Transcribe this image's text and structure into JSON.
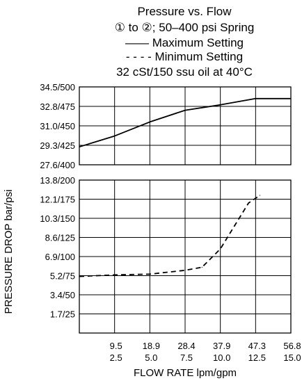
{
  "chart_data": {
    "type": "line",
    "title_lines": [
      "Pressure vs. Flow",
      "① to ②; 50–400 psi Spring",
      "—— Maximum Setting",
      "- - - - Minimum Setting",
      "32 cSt/150 ssu oil at 40°C"
    ],
    "xlabel": "FLOW RATE lpm/gpm",
    "ylabel": "PRESSURE DROP bar/psi",
    "x_ticks": [
      {
        "lpm": 9.5,
        "gpm": 2.5,
        "label_lpm": "9.5",
        "label_gpm": "2.5"
      },
      {
        "lpm": 18.9,
        "gpm": 5.0,
        "label_lpm": "18.9",
        "label_gpm": "5.0"
      },
      {
        "lpm": 28.4,
        "gpm": 7.5,
        "label_lpm": "28.4",
        "label_gpm": "7.5"
      },
      {
        "lpm": 37.9,
        "gpm": 10.0,
        "label_lpm": "37.9",
        "label_gpm": "10.0"
      },
      {
        "lpm": 47.3,
        "gpm": 12.5,
        "label_lpm": "47.3",
        "label_gpm": "12.5"
      },
      {
        "lpm": 56.8,
        "gpm": 15.0,
        "label_lpm": "56.8",
        "label_gpm": "15.0"
      }
    ],
    "xlim_gpm": [
      0,
      15
    ],
    "upper_panel": {
      "ylim_psi": [
        400,
        500
      ],
      "y_ticks": [
        {
          "psi": 500,
          "label": "34.5/500"
        },
        {
          "psi": 475,
          "label": "32.8/475"
        },
        {
          "psi": 450,
          "label": "31.0/450"
        },
        {
          "psi": 425,
          "label": "29.3/425"
        },
        {
          "psi": 400,
          "label": "27.6/400"
        }
      ],
      "series": [
        {
          "name": "Maximum Setting",
          "style": "solid",
          "points": [
            {
              "gpm": 0,
              "psi": 423
            },
            {
              "gpm": 2.5,
              "psi": 437
            },
            {
              "gpm": 5.0,
              "psi": 455
            },
            {
              "gpm": 7.5,
              "psi": 470
            },
            {
              "gpm": 10.0,
              "psi": 477
            },
            {
              "gpm": 12.5,
              "psi": 485
            },
            {
              "gpm": 15.0,
              "psi": 485
            }
          ]
        }
      ]
    },
    "lower_panel": {
      "ylim_psi": [
        0,
        200
      ],
      "y_ticks": [
        {
          "psi": 200,
          "label": "13.8/200"
        },
        {
          "psi": 175,
          "label": "12.1/175"
        },
        {
          "psi": 150,
          "label": "10.3/150"
        },
        {
          "psi": 125,
          "label": "8.6/125"
        },
        {
          "psi": 100,
          "label": "6.9/100"
        },
        {
          "psi": 75,
          "label": "5.2/75"
        },
        {
          "psi": 50,
          "label": "3.4/50"
        },
        {
          "psi": 25,
          "label": "1.7/25"
        }
      ],
      "series": [
        {
          "name": "Minimum Setting",
          "style": "dashed",
          "points": [
            {
              "gpm": 0,
              "psi": 74
            },
            {
              "gpm": 2.5,
              "psi": 76
            },
            {
              "gpm": 5.0,
              "psi": 77
            },
            {
              "gpm": 7.5,
              "psi": 82
            },
            {
              "gpm": 8.7,
              "psi": 86
            },
            {
              "gpm": 10.0,
              "psi": 110
            },
            {
              "gpm": 11.0,
              "psi": 140
            },
            {
              "gpm": 12.0,
              "psi": 170
            },
            {
              "gpm": 12.8,
              "psi": 180
            }
          ]
        }
      ]
    }
  }
}
